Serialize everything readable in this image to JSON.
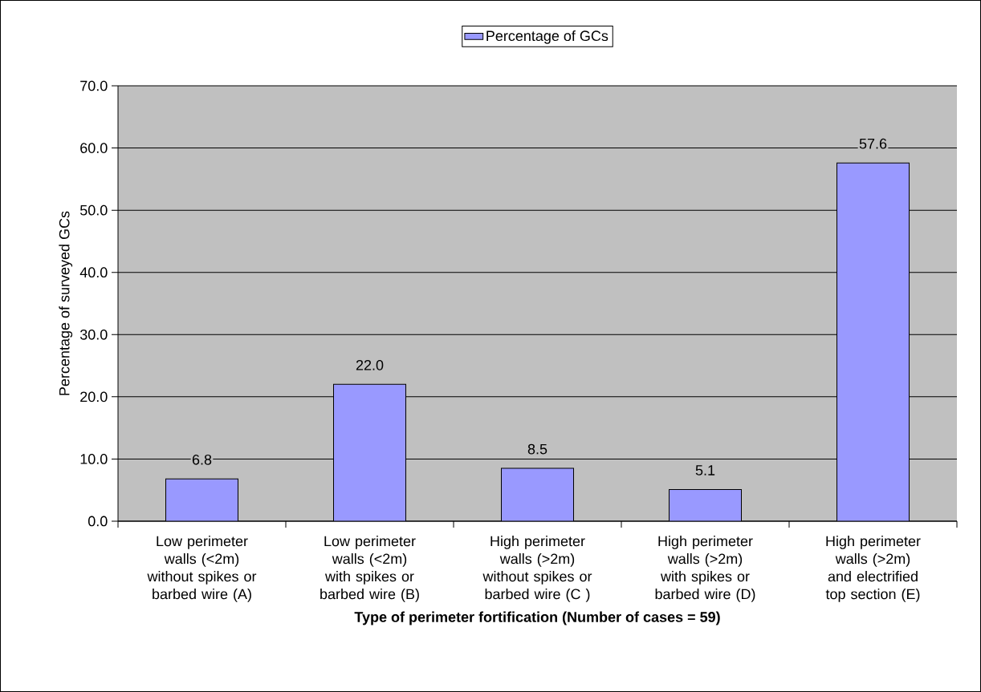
{
  "chart_data": {
    "type": "bar",
    "xlabel": "Type of perimeter fortification   (Number of cases = 59)",
    "ylabel": "Percentage of surveyed GCs",
    "categories": [
      "Low perimeter walls (<2m) without spikes or barbed wire (A)",
      "Low perimeter walls (<2m) with spikes or barbed wire (B)",
      "High perimeter walls (>2m) without spikes or barbed wire (C )",
      "High perimeter walls (>2m) with spikes or barbed wire (D)",
      "High perimeter walls (>2m) and electrified top section (E)"
    ],
    "series": [
      {
        "name": "Percentage of GCs",
        "color": "#9999ff",
        "values": [
          6.8,
          22.0,
          8.5,
          5.1,
          57.6
        ],
        "value_labels": [
          "6.8",
          "22.0",
          "8.5",
          "5.1",
          "57.6"
        ]
      }
    ],
    "ylim": [
      0,
      70
    ],
    "yticks": [
      {
        "value": 0,
        "label": "0.0"
      },
      {
        "value": 10,
        "label": "10.0"
      },
      {
        "value": 20,
        "label": "20.0"
      },
      {
        "value": 30,
        "label": "30.0"
      },
      {
        "value": 40,
        "label": "40.0"
      },
      {
        "value": 50,
        "label": "50.0"
      },
      {
        "value": 60,
        "label": "60.0"
      },
      {
        "value": 70,
        "label": "70.0"
      }
    ],
    "grid": "y",
    "legend": "top"
  }
}
